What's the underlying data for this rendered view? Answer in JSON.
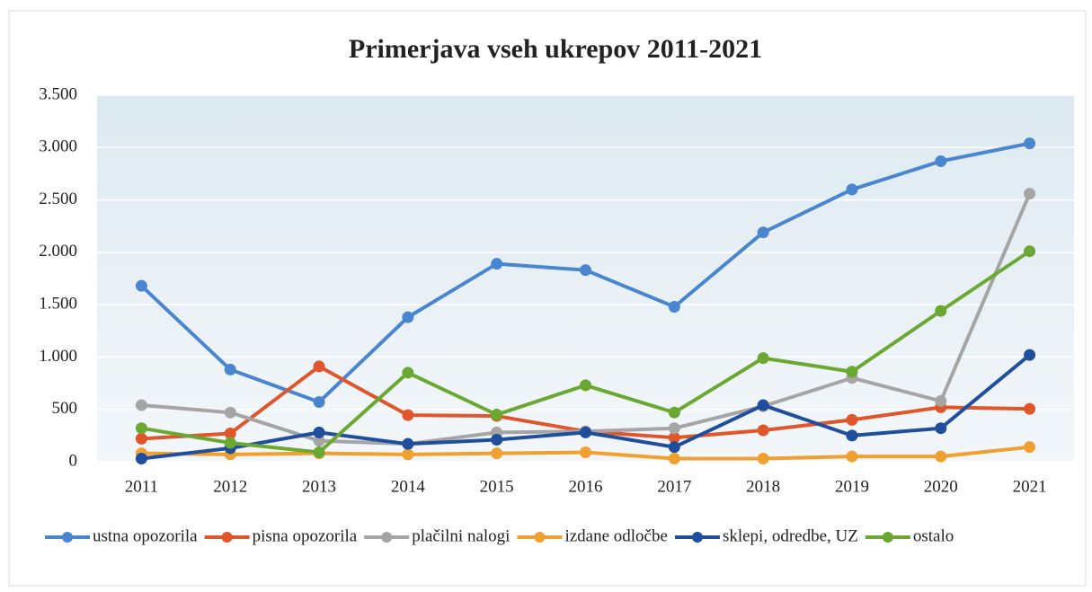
{
  "chart_data": {
    "type": "line",
    "title": "Primerjava vseh ukrepov 2011-2021",
    "categories": [
      "2011",
      "2012",
      "2013",
      "2014",
      "2015",
      "2016",
      "2017",
      "2018",
      "2019",
      "2020",
      "2021"
    ],
    "series": [
      {
        "name": "ustna opozorila",
        "color": "#4a86d0",
        "values": [
          1680,
          880,
          570,
          1380,
          1890,
          1830,
          1480,
          2190,
          2600,
          2870,
          3040
        ]
      },
      {
        "name": "pisna opozorila",
        "color": "#e0562a",
        "values": [
          220,
          270,
          910,
          445,
          437,
          290,
          230,
          300,
          400,
          520,
          505
        ]
      },
      {
        "name": "plačilni nalogi",
        "color": "#a5a5a5",
        "values": [
          540,
          470,
          200,
          170,
          280,
          290,
          320,
          530,
          800,
          580,
          2560
        ]
      },
      {
        "name": "izdane odločbe",
        "color": "#f0a030",
        "values": [
          80,
          70,
          80,
          70,
          80,
          90,
          30,
          30,
          50,
          50,
          140
        ]
      },
      {
        "name": "sklepi, odredbe, UZ",
        "color": "#1f4e9c",
        "values": [
          30,
          130,
          280,
          170,
          210,
          280,
          140,
          540,
          250,
          320,
          1020
        ]
      },
      {
        "name": "ostalo",
        "color": "#6aa832",
        "values": [
          320,
          180,
          90,
          850,
          450,
          730,
          470,
          990,
          860,
          1440,
          2010
        ]
      }
    ],
    "ylim": [
      0,
      3500
    ],
    "yticks": [
      0,
      500,
      {
        "value": 1000,
        "label": "1.000"
      },
      {
        "value": 1500,
        "label": "1.500"
      },
      {
        "value": 2000,
        "label": "2.000"
      },
      {
        "value": 2500,
        "label": "2.500"
      },
      {
        "value": 3000,
        "label": "3.000"
      },
      {
        "value": 3500,
        "label": "3.500"
      }
    ],
    "grid": true,
    "legend": "bottom"
  }
}
